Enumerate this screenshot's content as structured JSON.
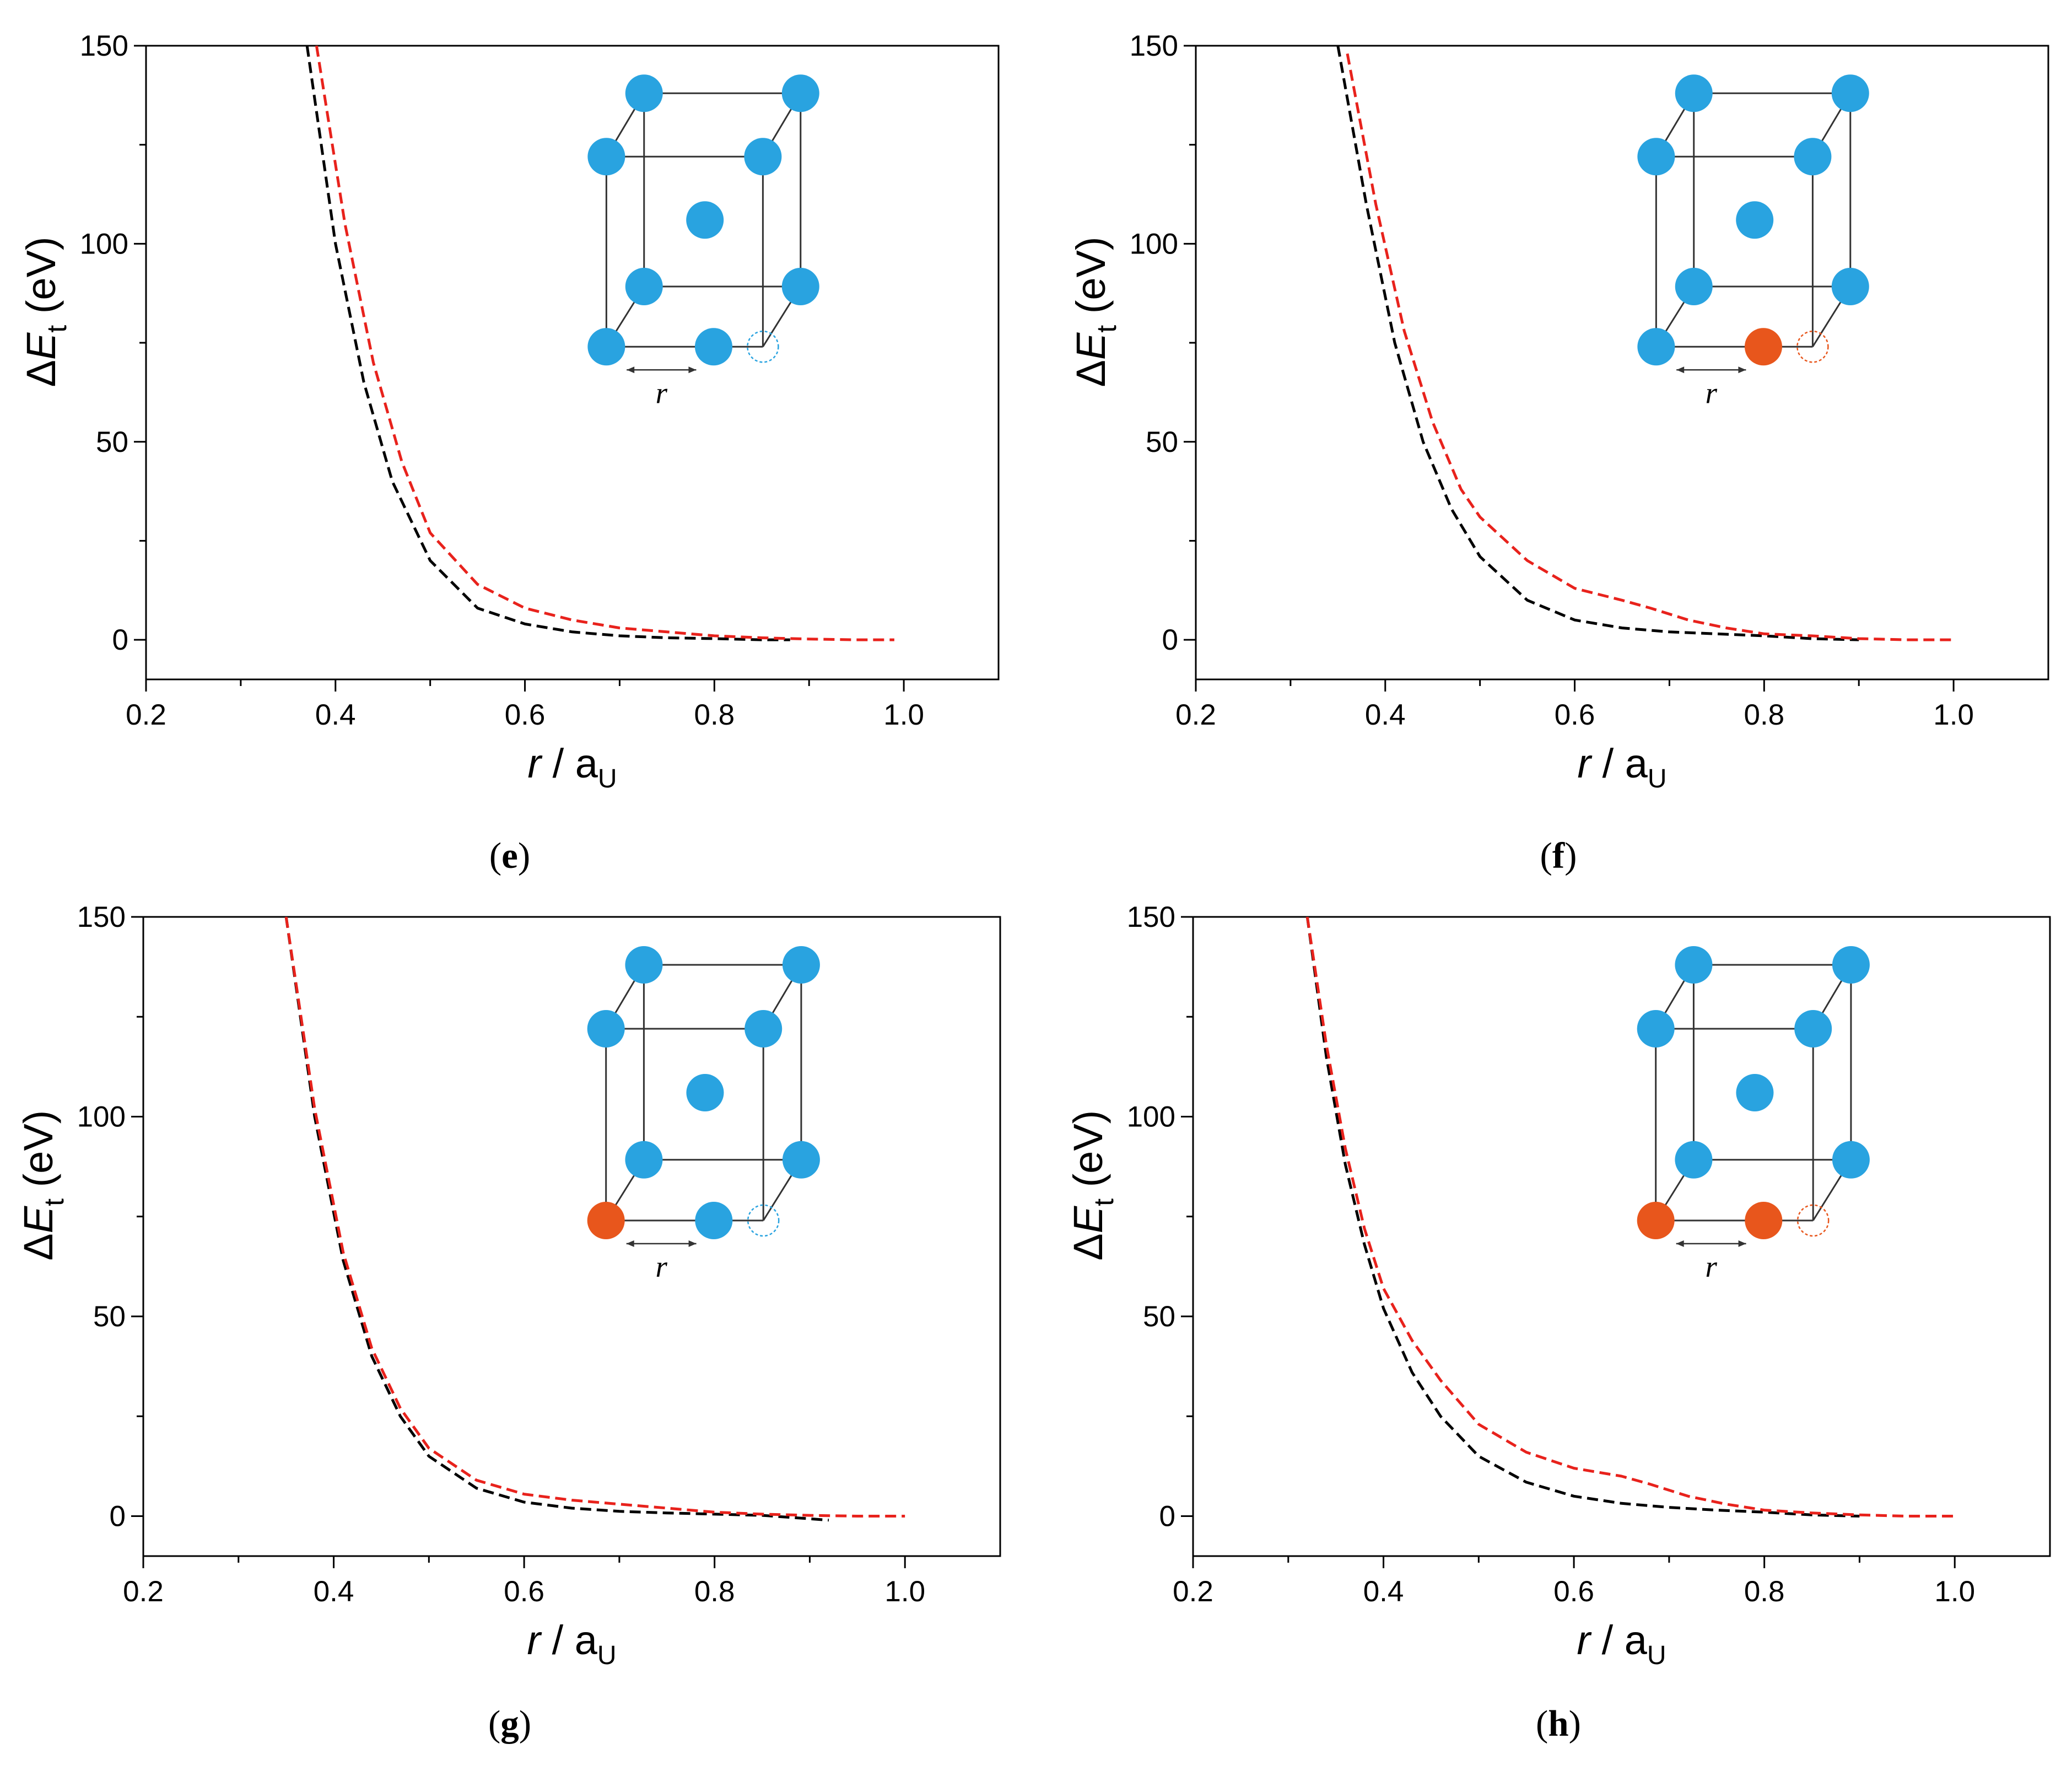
{
  "colors": {
    "background": "#ffffff",
    "axis": "#000000",
    "series_black": "#000000",
    "series_red": "#e8221c",
    "atom_blue": "#29a3e0",
    "atom_orange": "#e8561c",
    "lattice_line": "#333333"
  },
  "inset_text": "r",
  "chart_data": [
    {
      "type": "line",
      "panel": "e",
      "caption": "e",
      "xlabel_var": "r",
      "xlabel_sep": "/",
      "xlabel_base": "a",
      "xlabel_sub": "U",
      "ylabel_main": "ΔE",
      "ylabel_sub": "t",
      "ylabel_unit": "(eV)",
      "xlim": [
        0.2,
        1.1
      ],
      "ylim": [
        -10,
        150
      ],
      "xticks": [
        0.2,
        0.4,
        0.6,
        0.8,
        1.0
      ],
      "xtick_labels": [
        "0.2",
        "0.4",
        "0.6",
        "0.8",
        "1.0"
      ],
      "yticks": [
        0,
        50,
        100,
        150
      ],
      "ytick_labels": [
        "0",
        "50",
        "100",
        "150"
      ],
      "inset": {
        "moved_atom": "blue",
        "corner_atom": "blue",
        "vacancy": "blue"
      },
      "series": [
        {
          "name": "black",
          "color": "#000000",
          "x": [
            0.37,
            0.4,
            0.43,
            0.46,
            0.5,
            0.55,
            0.6,
            0.65,
            0.7,
            0.75,
            0.8,
            0.85,
            0.88
          ],
          "y": [
            150,
            100,
            65,
            40,
            20,
            8,
            4,
            2,
            1,
            0.5,
            0.3,
            0,
            0
          ]
        },
        {
          "name": "red",
          "color": "#e8221c",
          "x": [
            0.38,
            0.41,
            0.44,
            0.47,
            0.5,
            0.55,
            0.6,
            0.65,
            0.7,
            0.75,
            0.8,
            0.85,
            0.9,
            0.95,
            0.99
          ],
          "y": [
            150,
            105,
            70,
            45,
            27,
            14,
            8,
            5,
            3,
            2,
            1,
            0.5,
            0.2,
            0,
            0
          ]
        }
      ]
    },
    {
      "type": "line",
      "panel": "f",
      "caption": "f",
      "xlabel_var": "r",
      "xlabel_sep": "/",
      "xlabel_base": "a",
      "xlabel_sub": "U",
      "ylabel_main": "ΔE",
      "ylabel_sub": "t",
      "ylabel_unit": "(eV)",
      "xlim": [
        0.2,
        1.1
      ],
      "ylim": [
        -10,
        150
      ],
      "xticks": [
        0.2,
        0.4,
        0.6,
        0.8,
        1.0
      ],
      "xtick_labels": [
        "0.2",
        "0.4",
        "0.6",
        "0.8",
        "1.0"
      ],
      "yticks": [
        0,
        50,
        100,
        150
      ],
      "ytick_labels": [
        "0",
        "50",
        "100",
        "150"
      ],
      "inset": {
        "moved_atom": "orange",
        "corner_atom": "blue",
        "vacancy": "orange"
      },
      "series": [
        {
          "name": "black",
          "color": "#000000",
          "x": [
            0.35,
            0.38,
            0.41,
            0.44,
            0.47,
            0.5,
            0.55,
            0.6,
            0.65,
            0.7,
            0.75,
            0.8,
            0.85,
            0.9
          ],
          "y": [
            150,
            110,
            75,
            50,
            33,
            21,
            10,
            5,
            3,
            2,
            1.5,
            1,
            0.3,
            0
          ]
        },
        {
          "name": "red",
          "color": "#e8221c",
          "x": [
            0.36,
            0.39,
            0.42,
            0.45,
            0.48,
            0.5,
            0.55,
            0.6,
            0.65,
            0.68,
            0.72,
            0.76,
            0.8,
            0.85,
            0.9,
            0.95,
            1.0
          ],
          "y": [
            148,
            110,
            78,
            55,
            38,
            31,
            20,
            13,
            10,
            8,
            5,
            3,
            1.5,
            1,
            0.3,
            0,
            0
          ]
        }
      ]
    },
    {
      "type": "line",
      "panel": "g",
      "caption": "g",
      "xlabel_var": "r",
      "xlabel_sep": "/",
      "xlabel_base": "a",
      "xlabel_sub": "U",
      "ylabel_main": "ΔE",
      "ylabel_sub": "t",
      "ylabel_unit": "(eV)",
      "xlim": [
        0.2,
        1.1
      ],
      "ylim": [
        -10,
        150
      ],
      "xticks": [
        0.2,
        0.4,
        0.6,
        0.8,
        1.0
      ],
      "xtick_labels": [
        "0.2",
        "0.4",
        "0.6",
        "0.8",
        "1.0"
      ],
      "yticks": [
        0,
        50,
        100,
        150
      ],
      "ytick_labels": [
        "0",
        "50",
        "100",
        "150"
      ],
      "inset": {
        "moved_atom": "blue",
        "corner_atom": "orange",
        "vacancy": "blue"
      },
      "series": [
        {
          "name": "black",
          "color": "#000000",
          "x": [
            0.35,
            0.38,
            0.41,
            0.44,
            0.47,
            0.5,
            0.55,
            0.6,
            0.65,
            0.7,
            0.75,
            0.8,
            0.85,
            0.92
          ],
          "y": [
            150,
            100,
            64,
            40,
            25,
            15,
            7,
            3.5,
            2,
            1.2,
            0.8,
            0.5,
            0.2,
            -1
          ]
        },
        {
          "name": "red",
          "color": "#e8221c",
          "x": [
            0.35,
            0.38,
            0.41,
            0.44,
            0.47,
            0.5,
            0.55,
            0.6,
            0.65,
            0.7,
            0.75,
            0.8,
            0.85,
            0.9,
            0.95,
            1.0
          ],
          "y": [
            150,
            102,
            66,
            42,
            27,
            17,
            9,
            5.5,
            4,
            3,
            2,
            1,
            0.5,
            0.2,
            0,
            0
          ]
        }
      ]
    },
    {
      "type": "line",
      "panel": "h",
      "caption": "h",
      "xlabel_var": "r",
      "xlabel_sep": "/",
      "xlabel_base": "a",
      "xlabel_sub": "U",
      "ylabel_main": "ΔE",
      "ylabel_sub": "t",
      "ylabel_unit": "(eV)",
      "xlim": [
        0.2,
        1.1
      ],
      "ylim": [
        -10,
        150
      ],
      "xticks": [
        0.2,
        0.4,
        0.6,
        0.8,
        1.0
      ],
      "xtick_labels": [
        "0.2",
        "0.4",
        "0.6",
        "0.8",
        "1.0"
      ],
      "yticks": [
        0,
        50,
        100,
        150
      ],
      "ytick_labels": [
        "0",
        "50",
        "100",
        "150"
      ],
      "inset": {
        "moved_atom": "orange",
        "corner_atom": "orange",
        "vacancy": "orange"
      },
      "series": [
        {
          "name": "black",
          "color": "#000000",
          "x": [
            0.32,
            0.34,
            0.36,
            0.38,
            0.4,
            0.43,
            0.46,
            0.5,
            0.55,
            0.6,
            0.65,
            0.7,
            0.75,
            0.8,
            0.85,
            0.9
          ],
          "y": [
            150,
            115,
            88,
            68,
            52,
            36,
            25,
            15,
            8.5,
            5,
            3.2,
            2.2,
            1.5,
            1,
            0.3,
            0
          ]
        },
        {
          "name": "red",
          "color": "#e8221c",
          "x": [
            0.32,
            0.34,
            0.36,
            0.38,
            0.4,
            0.43,
            0.46,
            0.5,
            0.55,
            0.6,
            0.65,
            0.68,
            0.72,
            0.76,
            0.8,
            0.85,
            0.9,
            0.95,
            1.0
          ],
          "y": [
            150,
            118,
            92,
            72,
            57,
            44,
            34,
            23,
            16,
            12,
            10,
            8,
            5,
            3,
            1.5,
            0.8,
            0.3,
            0,
            0
          ]
        }
      ]
    }
  ]
}
